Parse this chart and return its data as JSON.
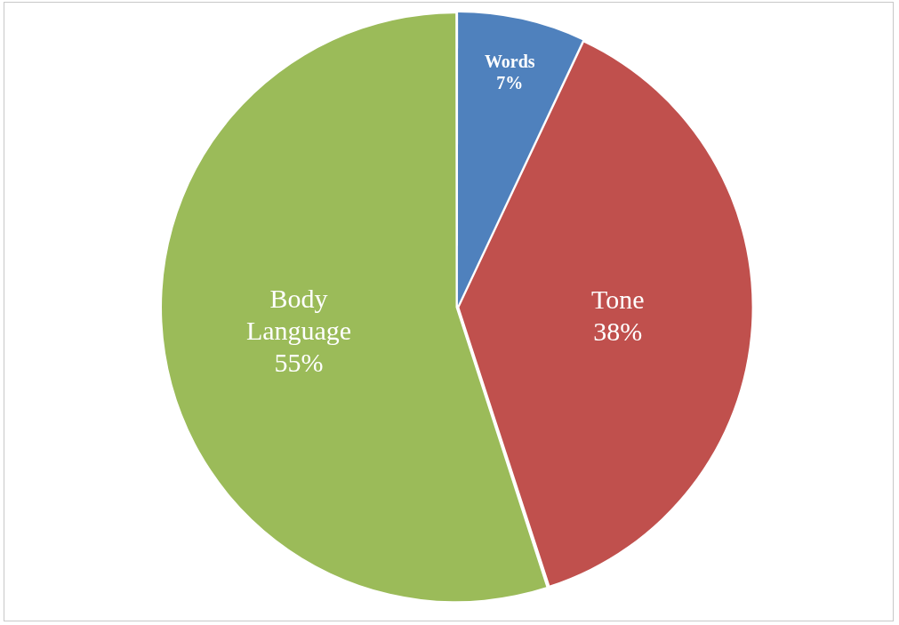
{
  "chart_data": {
    "type": "pie",
    "categories": [
      "Words",
      "Tone",
      "Body Language"
    ],
    "values": [
      7,
      38,
      55
    ],
    "colors": [
      "#4f81bd",
      "#c0504d",
      "#9bbb59"
    ],
    "value_labels": [
      "7%",
      "38%",
      "55%"
    ],
    "legend": false
  }
}
